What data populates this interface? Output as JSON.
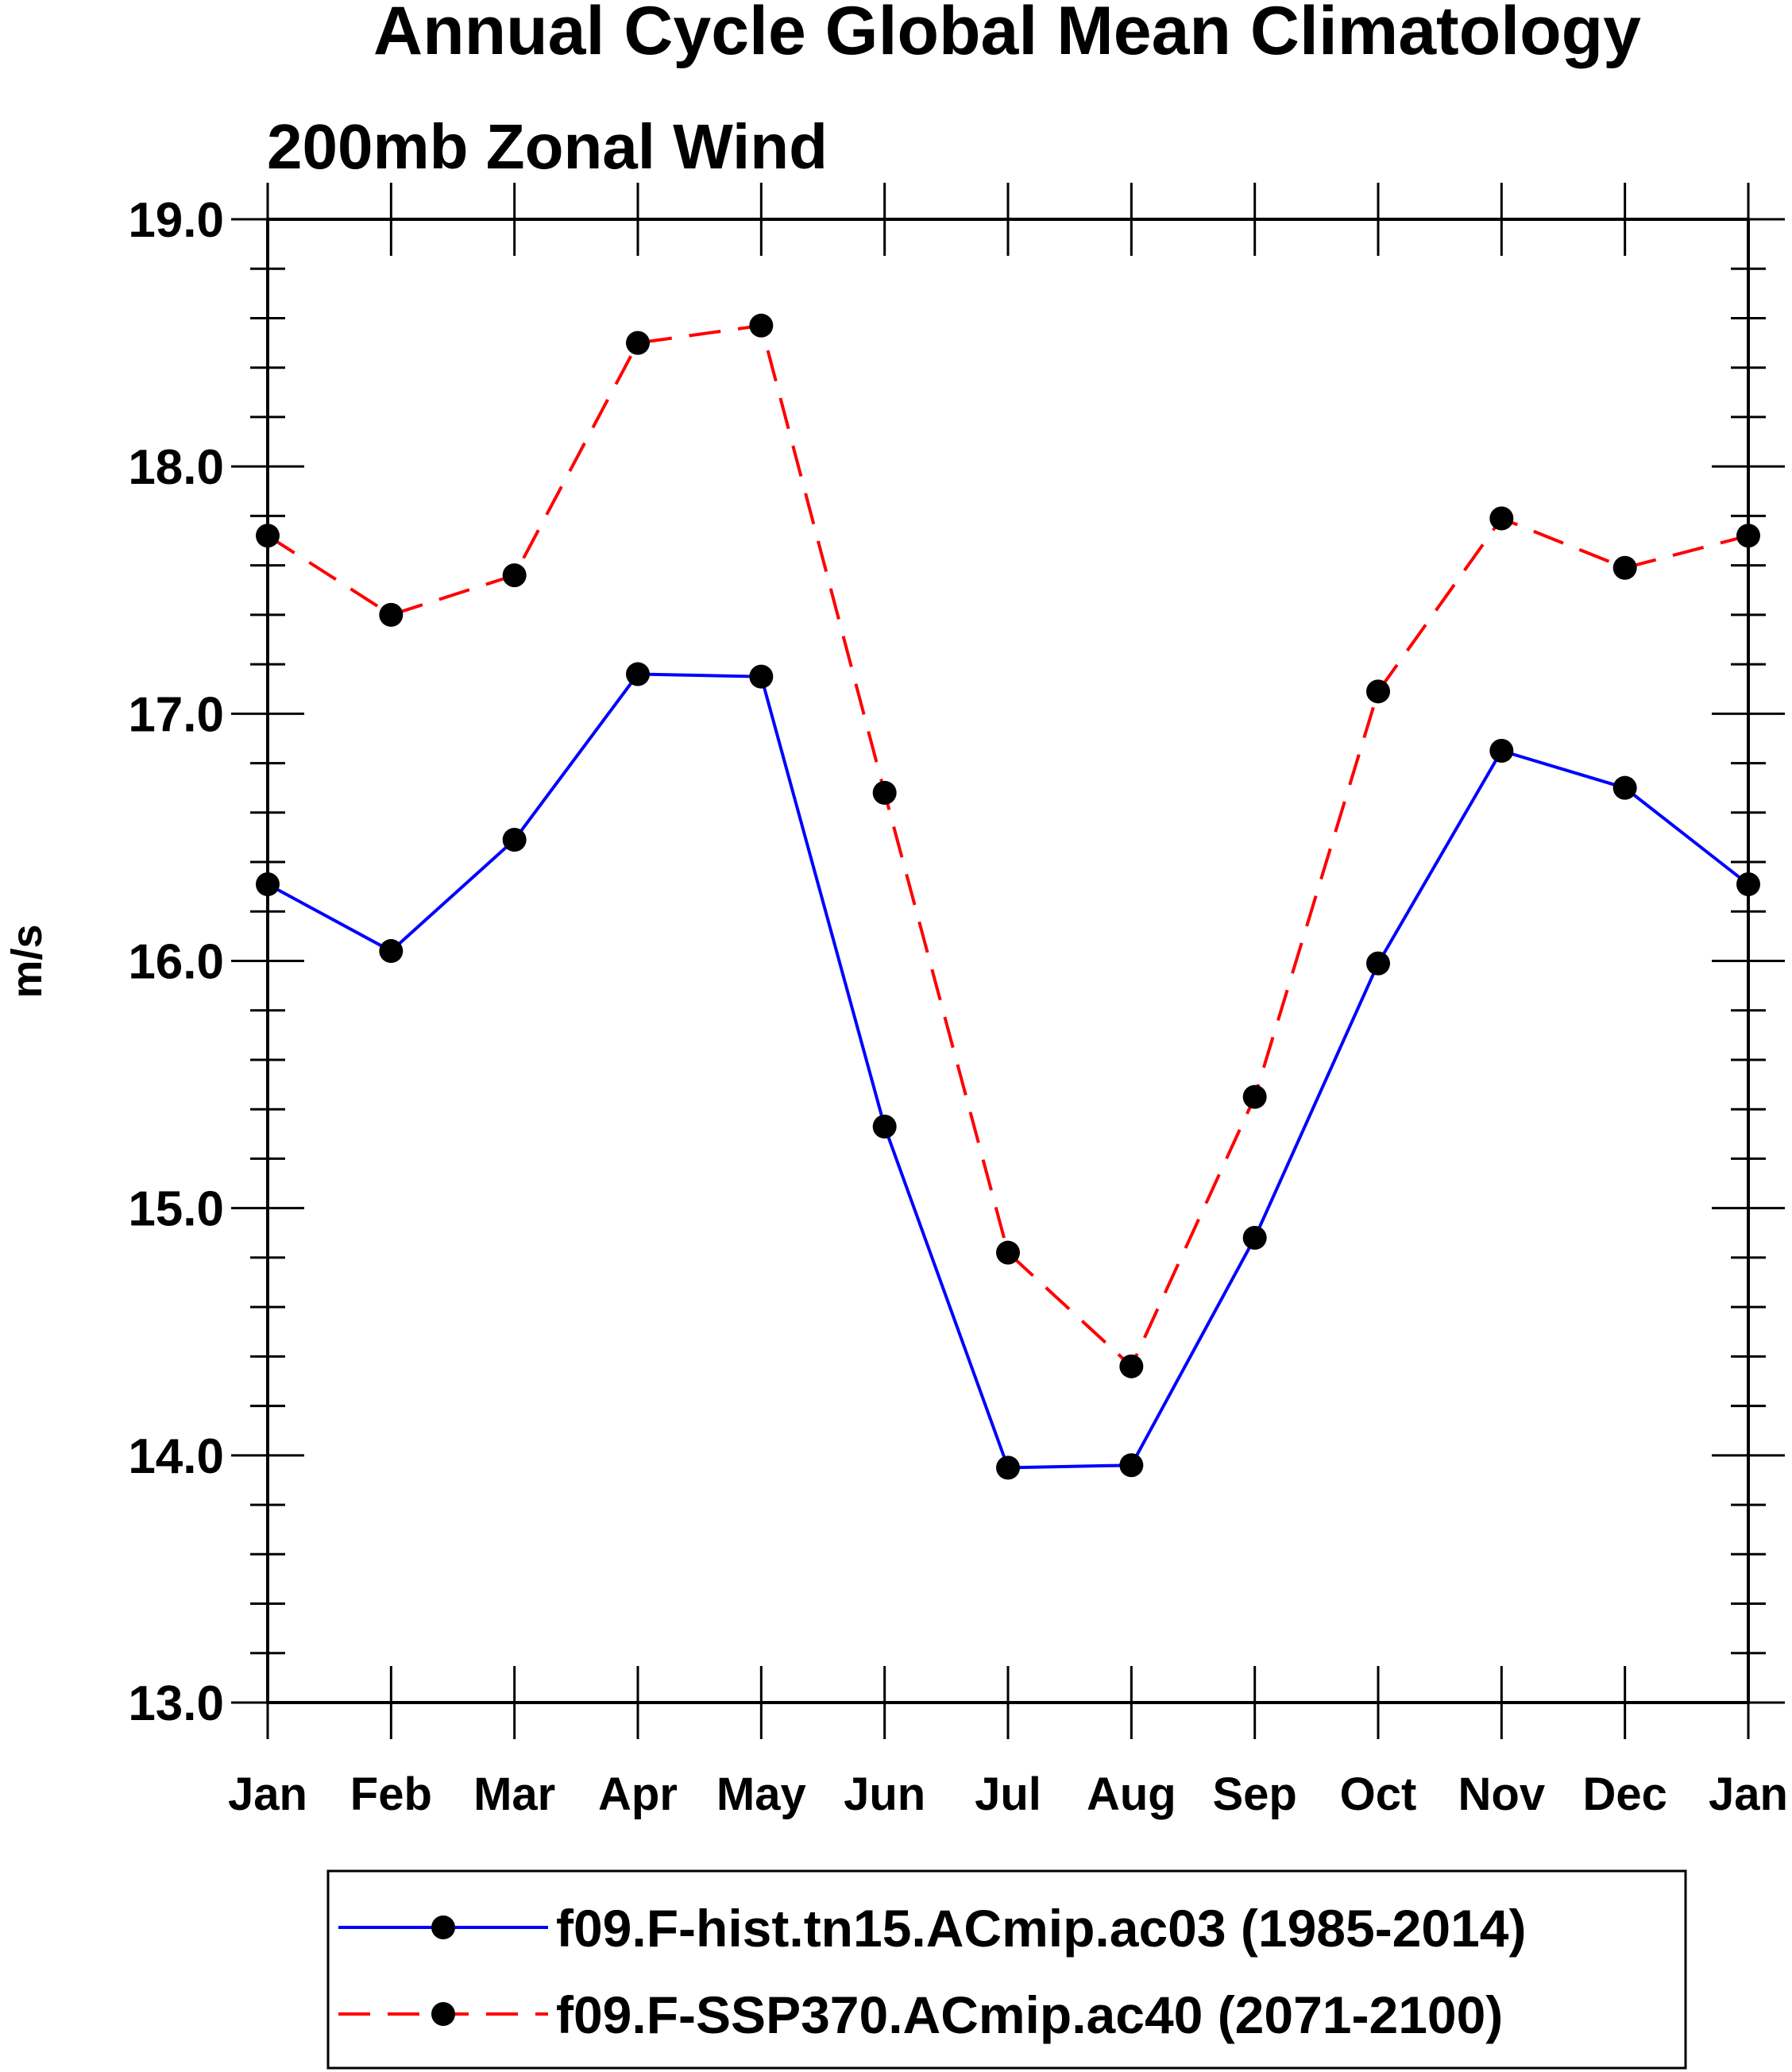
{
  "chart_data": {
    "type": "line",
    "title": "Annual Cycle Global Mean Climatology",
    "subtitle": "200mb Zonal Wind",
    "xlabel": "",
    "ylabel": "m/s",
    "categories": [
      "Jan",
      "Feb",
      "Mar",
      "Apr",
      "May",
      "Jun",
      "Jul",
      "Aug",
      "Sep",
      "Oct",
      "Nov",
      "Dec",
      "Jan"
    ],
    "ylim": [
      13.0,
      19.0
    ],
    "yticks": [
      "13.0",
      "14.0",
      "15.0",
      "16.0",
      "17.0",
      "18.0",
      "19.0"
    ],
    "grid": false,
    "legend_position": "bottom",
    "series": [
      {
        "name": "f09.F-hist.tn15.ACmip.ac03 (1985-2014)",
        "color": "#0000ff",
        "dash": "solid",
        "marker": "filled-circle",
        "values": [
          16.31,
          16.04,
          16.49,
          17.16,
          17.15,
          15.33,
          13.95,
          13.96,
          14.88,
          15.99,
          16.85,
          16.7,
          16.31
        ]
      },
      {
        "name": "f09.F-SSP370.ACmip.ac40 (2071-2100)",
        "color": "#ff0000",
        "dash": "dashed",
        "marker": "filled-circle",
        "values": [
          17.72,
          17.4,
          17.56,
          18.5,
          18.57,
          16.68,
          14.82,
          14.36,
          15.45,
          17.09,
          17.79,
          17.59,
          17.72
        ]
      }
    ]
  }
}
